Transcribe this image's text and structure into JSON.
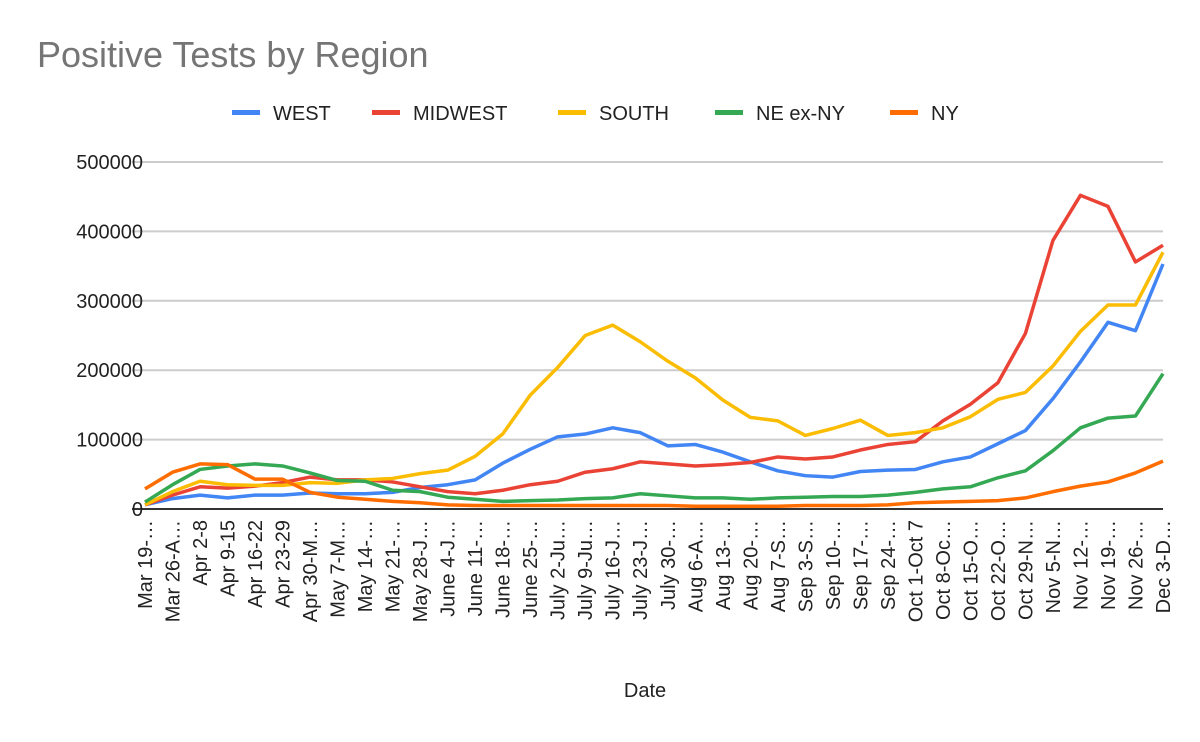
{
  "chart_data": {
    "type": "line",
    "title": "Positive Tests by Region",
    "xlabel": "Date",
    "ylabel": "",
    "ylim": [
      0,
      500000
    ],
    "yticks": [
      "0",
      "100000",
      "200000",
      "300000",
      "400000",
      "500000"
    ],
    "grid": true,
    "legend": "top",
    "categories": [
      "Mar 19-…",
      "Mar 26-A…",
      "Apr 2-8",
      "Apr 9-15",
      "Apr 16-22",
      "Apr 23-29",
      "Apr 30-M…",
      "May 7-M…",
      "May 14-…",
      "May 21-…",
      "May 28-J…",
      "June 4-J…",
      "June 11-…",
      "June 18-…",
      "June 25-…",
      "July 2-Ju…",
      "July 9-Ju…",
      "July 16-J…",
      "July 23-J…",
      "July 30-…",
      "Aug 6-A…",
      "Aug 13-…",
      "Aug 20-…",
      "Aug 7-S…",
      "Sep 3-S…",
      "Sep 10-…",
      "Sep 17-…",
      "Sep 24-…",
      "Oct 1-Oct 7",
      "Oct 8-Oc…",
      "Oct 15-O…",
      "Oct 22-O…",
      "Oct 29-N…",
      "Nov 5-N…",
      "Nov 12-…",
      "Nov 19-…",
      "Nov 26-…",
      "Dec 3-D…"
    ],
    "series": [
      {
        "name": "WEST",
        "color": "#4285f4",
        "values": [
          6000,
          15000,
          20000,
          16000,
          20000,
          20000,
          23000,
          22000,
          22000,
          24000,
          31000,
          35000,
          42000,
          66000,
          86000,
          104000,
          108000,
          117000,
          110000,
          91000,
          93000,
          82000,
          68000,
          55000,
          48000,
          46000,
          54000,
          56000,
          57000,
          68000,
          75000,
          94000,
          113000,
          159000,
          212000,
          269000,
          257000,
          353000
        ]
      },
      {
        "name": "MIDWEST",
        "color": "#ea4335",
        "values": [
          6000,
          20000,
          32000,
          30000,
          33000,
          38000,
          46000,
          42000,
          42000,
          39000,
          32000,
          25000,
          22000,
          27000,
          35000,
          40000,
          53000,
          58000,
          68000,
          65000,
          62000,
          64000,
          67000,
          75000,
          72000,
          75000,
          85000,
          93000,
          97000,
          127000,
          151000,
          182000,
          253000,
          387000,
          452000,
          436000,
          356000,
          380000
        ]
      },
      {
        "name": "SOUTH",
        "color": "#fbbc04",
        "values": [
          6000,
          25000,
          40000,
          35000,
          34000,
          34000,
          38000,
          37000,
          42000,
          44000,
          51000,
          56000,
          76000,
          108000,
          164000,
          204000,
          250000,
          265000,
          241000,
          213000,
          189000,
          157000,
          132000,
          127000,
          106000,
          116000,
          128000,
          106000,
          110000,
          117000,
          133000,
          158000,
          168000,
          206000,
          256000,
          294000,
          294000,
          370000
        ]
      },
      {
        "name": "NE ex-NY",
        "color": "#34a853",
        "values": [
          10000,
          35000,
          57000,
          62000,
          65000,
          62000,
          52000,
          41000,
          40000,
          27000,
          25000,
          17000,
          14000,
          11000,
          12000,
          13000,
          15000,
          16000,
          22000,
          19000,
          16000,
          16000,
          14000,
          16000,
          17000,
          18000,
          18000,
          20000,
          24000,
          29000,
          32000,
          45000,
          55000,
          84000,
          117000,
          131000,
          134000,
          195000
        ]
      },
      {
        "name": "NY",
        "color": "#ff6d01",
        "values": [
          29000,
          53000,
          65000,
          64000,
          43000,
          43000,
          24000,
          17000,
          14000,
          11000,
          9000,
          6000,
          5000,
          5000,
          5000,
          5000,
          5000,
          5000,
          5000,
          5000,
          4000,
          4000,
          4000,
          4000,
          5000,
          5000,
          5000,
          6000,
          9000,
          10000,
          11000,
          12000,
          16000,
          25000,
          33000,
          39000,
          52000,
          69000
        ]
      }
    ]
  }
}
